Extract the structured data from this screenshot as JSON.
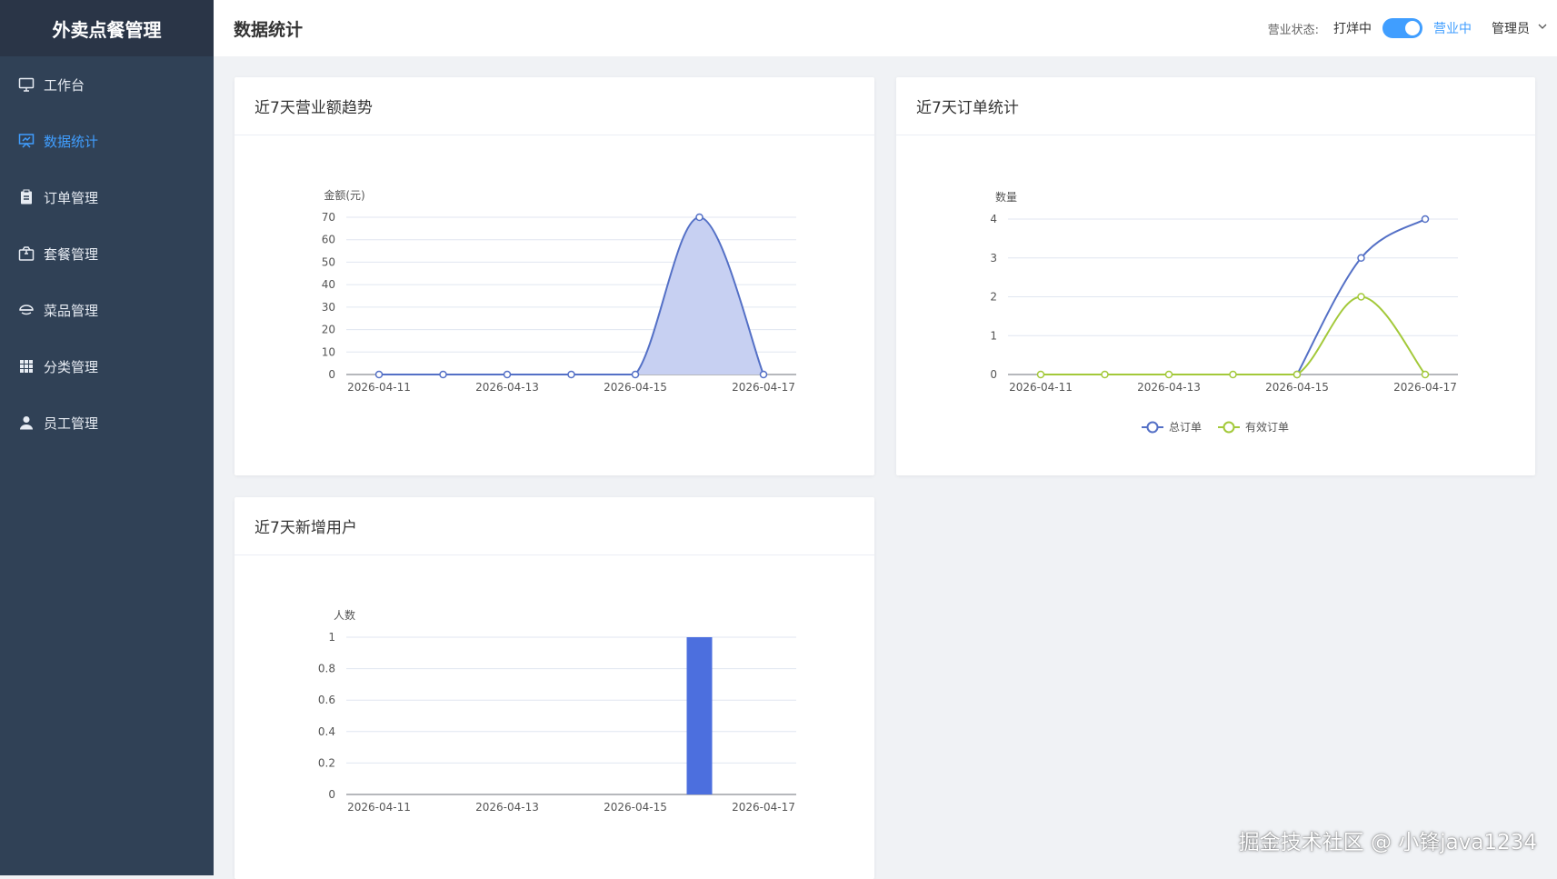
{
  "app": {
    "title": "外卖点餐管理"
  },
  "nav": [
    {
      "label": "工作台",
      "icon": "monitor-icon",
      "active": false
    },
    {
      "label": "数据统计",
      "icon": "chart-icon",
      "active": true
    },
    {
      "label": "订单管理",
      "icon": "clipboard-icon",
      "active": false
    },
    {
      "label": "套餐管理",
      "icon": "package-icon",
      "active": false
    },
    {
      "label": "菜品管理",
      "icon": "dish-icon",
      "active": false
    },
    {
      "label": "分类管理",
      "icon": "grid-icon",
      "active": false
    },
    {
      "label": "员工管理",
      "icon": "user-icon",
      "active": false
    }
  ],
  "header": {
    "title": "数据统计",
    "status_label": "营业状态:",
    "closed_label": "打烊中",
    "open_label": "营业中",
    "status_on": true,
    "user": "管理员"
  },
  "cards": {
    "revenue": {
      "title": "近7天营业额趋势"
    },
    "orders": {
      "title": "近7天订单统计"
    },
    "users": {
      "title": "近7天新增用户"
    }
  },
  "watermark": "掘金技术社区 @ 小锋java1234",
  "colors": {
    "primary": "#409eff",
    "series1": "#5470c6",
    "series2": "#a3c93a",
    "sidebar": "#304156"
  },
  "chart_data": [
    {
      "type": "area",
      "xlabel": "",
      "ylabel": "金额(元)",
      "ylim": [
        0,
        70
      ],
      "yticks": [
        0,
        10,
        20,
        30,
        40,
        50,
        60,
        70
      ],
      "x": [
        "2026-04-11",
        "2026-04-12",
        "2026-04-13",
        "2026-04-14",
        "2026-04-15",
        "2026-04-16",
        "2026-04-17"
      ],
      "xtick_labels": [
        "2026-04-11",
        "",
        "2026-04-13",
        "",
        "2026-04-15",
        "",
        "2026-04-17"
      ],
      "series": [
        {
          "values": [
            0,
            0,
            0,
            0,
            0,
            70,
            0
          ]
        }
      ]
    },
    {
      "type": "line",
      "xlabel": "",
      "ylabel": "数量",
      "ylim": [
        0,
        4
      ],
      "yticks": [
        0,
        1,
        2,
        3,
        4
      ],
      "x": [
        "2026-04-11",
        "2026-04-12",
        "2026-04-13",
        "2026-04-14",
        "2026-04-15",
        "2026-04-16",
        "2026-04-17"
      ],
      "xtick_labels": [
        "2026-04-11",
        "",
        "2026-04-13",
        "",
        "2026-04-15",
        "",
        "2026-04-17"
      ],
      "series": [
        {
          "name": "总订单",
          "values": [
            null,
            null,
            null,
            null,
            0,
            3,
            4
          ]
        },
        {
          "name": "有效订单",
          "values": [
            0,
            0,
            0,
            0,
            0,
            2,
            0
          ]
        }
      ],
      "legend": "bottom"
    },
    {
      "type": "bar",
      "xlabel": "",
      "ylabel": "人数",
      "ylim": [
        0,
        1
      ],
      "yticks": [
        "0",
        "0.2",
        "0.4",
        "0.6",
        "0.8",
        "1"
      ],
      "x": [
        "2026-04-11",
        "2026-04-12",
        "2026-04-13",
        "2026-04-14",
        "2026-04-15",
        "2026-04-16",
        "2026-04-17"
      ],
      "xtick_labels": [
        "2026-04-11",
        "",
        "2026-04-13",
        "",
        "2026-04-15",
        "",
        "2026-04-17"
      ],
      "series": [
        {
          "values": [
            0,
            0,
            0,
            0,
            0,
            1,
            0
          ]
        }
      ]
    }
  ]
}
